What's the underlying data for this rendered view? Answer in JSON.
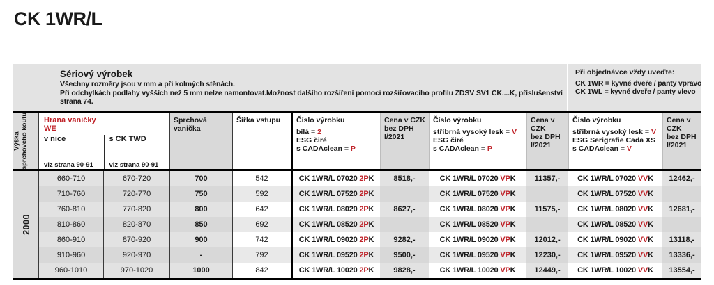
{
  "page": {
    "title": "CK 1WR/L"
  },
  "colors": {
    "accent_red": "#bf2228"
  },
  "info_band": {
    "title": "Sériový výrobek",
    "line1": "Všechny rozměry jsou v mm a při kolmých stěnách.",
    "line2": "Při odchylkách podlahy vyšších než 5 mm nelze namontovat.Možnost dalšího rozšíření pomoci rozšiřovacího profilu ZDSV SV1 CK....K, příslušenství",
    "line3": "strana 74.",
    "order_note": {
      "title": "Při objednávce vždy uveďte:",
      "line1": "CK 1WR = kyvné dveře / panty vpravo",
      "line2": "CK 1WL = kyvné dveře / panty vlevo"
    }
  },
  "columns": {
    "height_label_line1": "Výška",
    "height_label_line2": "sprchového koutu",
    "edge_group": {
      "title": "Hrana vaničky",
      "title2": "WE",
      "sub1": "v nice",
      "sub2": "s CK TWD",
      "ref": "viz strana 90-91"
    },
    "tray": "Sprchová vanička",
    "entry": "Šířka vstupu",
    "code1": {
      "title": "Číslo výrobku",
      "l1": "bílá = ",
      "l1r": "2",
      "l2": "ESG čiré",
      "l3": "s CADAclean = ",
      "l3r": "P"
    },
    "code2": {
      "title": "Číslo výrobku",
      "l1": "stříbrná vysoký lesk = ",
      "l1r": "V",
      "l2": "ESG čiré",
      "l3": "s CADAclean = ",
      "l3r": "P"
    },
    "code3": {
      "title": "Číslo výrobku",
      "l1": "stříbrná vysoký lesk = ",
      "l1r": "V",
      "l2": "ESG Serigrafie Cada XS",
      "l3": "s CADAclean = ",
      "l3r": "V"
    },
    "price": {
      "l1": "Cena v CZK",
      "l2": "bez DPH",
      "l3": "I/2021"
    }
  },
  "body": {
    "height_value": "2000",
    "rows": [
      {
        "nice": "660-710",
        "twd": "670-720",
        "tray": "700",
        "entry": "542",
        "c1b": "CK 1WR/L 07020 ",
        "c1r": "2P",
        "c1k": "K",
        "p1": "8518,-",
        "c2b": "CK 1WR/L 07020 ",
        "c2r": "VP",
        "c2k": "K",
        "p2": "11357,-",
        "c3b": "CK 1WR/L 07020 ",
        "c3r": "VV",
        "c3k": "K",
        "p3": "12462,-"
      },
      {
        "nice": "710-760",
        "twd": "720-770",
        "tray": "750",
        "entry": "592",
        "c1b": "CK 1WR/L 07520 ",
        "c1r": "2P",
        "c1k": "K",
        "p1": "",
        "c2b": "CK 1WR/L 07520 ",
        "c2r": "VP",
        "c2k": "K",
        "p2": "",
        "c3b": "CK 1WR/L 07520 ",
        "c3r": "VV",
        "c3k": "K",
        "p3": ""
      },
      {
        "nice": "760-810",
        "twd": "770-820",
        "tray": "800",
        "entry": "642",
        "c1b": "CK 1WR/L 08020 ",
        "c1r": "2P",
        "c1k": "K",
        "p1": "8627,-",
        "c2b": "CK 1WR/L 08020 ",
        "c2r": "VP",
        "c2k": "K",
        "p2": "11575,-",
        "c3b": "CK 1WR/L 08020 ",
        "c3r": "VV",
        "c3k": "K",
        "p3": "12681,-"
      },
      {
        "nice": "810-860",
        "twd": "820-870",
        "tray": "850",
        "entry": "692",
        "c1b": "CK 1WR/L 08520 ",
        "c1r": "2P",
        "c1k": "K",
        "p1": "",
        "c2b": "CK 1WR/L 08520 ",
        "c2r": "VP",
        "c2k": "K",
        "p2": "",
        "c3b": "CK 1WR/L 08520 ",
        "c3r": "VV",
        "c3k": "K",
        "p3": ""
      },
      {
        "nice": "860-910",
        "twd": "870-920",
        "tray": "900",
        "entry": "742",
        "c1b": "CK 1WR/L 09020 ",
        "c1r": "2P",
        "c1k": "K",
        "p1": "9282,-",
        "c2b": "CK 1WR/L 09020 ",
        "c2r": "VP",
        "c2k": "K",
        "p2": "12012,-",
        "c3b": "CK 1WR/L 09020 ",
        "c3r": "VV",
        "c3k": "K",
        "p3": "13118,-"
      },
      {
        "nice": "910-960",
        "twd": "920-970",
        "tray": "-",
        "entry": "792",
        "c1b": "CK 1WR/L 09520 ",
        "c1r": "2P",
        "c1k": "K",
        "p1": "9500,-",
        "c2b": "CK 1WR/L 09520 ",
        "c2r": "VP",
        "c2k": "K",
        "p2": "12230,-",
        "c3b": "CK 1WR/L 09520 ",
        "c3r": "VV",
        "c3k": "K",
        "p3": "13336,-"
      },
      {
        "nice": "960-1010",
        "twd": "970-1020",
        "tray": "1000",
        "entry": "842",
        "c1b": "CK 1WR/L 10020 ",
        "c1r": "2P",
        "c1k": "K",
        "p1": "9828,-",
        "c2b": "CK 1WR/L 10020 ",
        "c2r": "VP",
        "c2k": "K",
        "p2": "12449,-",
        "c3b": "CK 1WR/L 10020 ",
        "c3r": "VV",
        "c3k": "K",
        "p3": "13554,-"
      }
    ]
  }
}
